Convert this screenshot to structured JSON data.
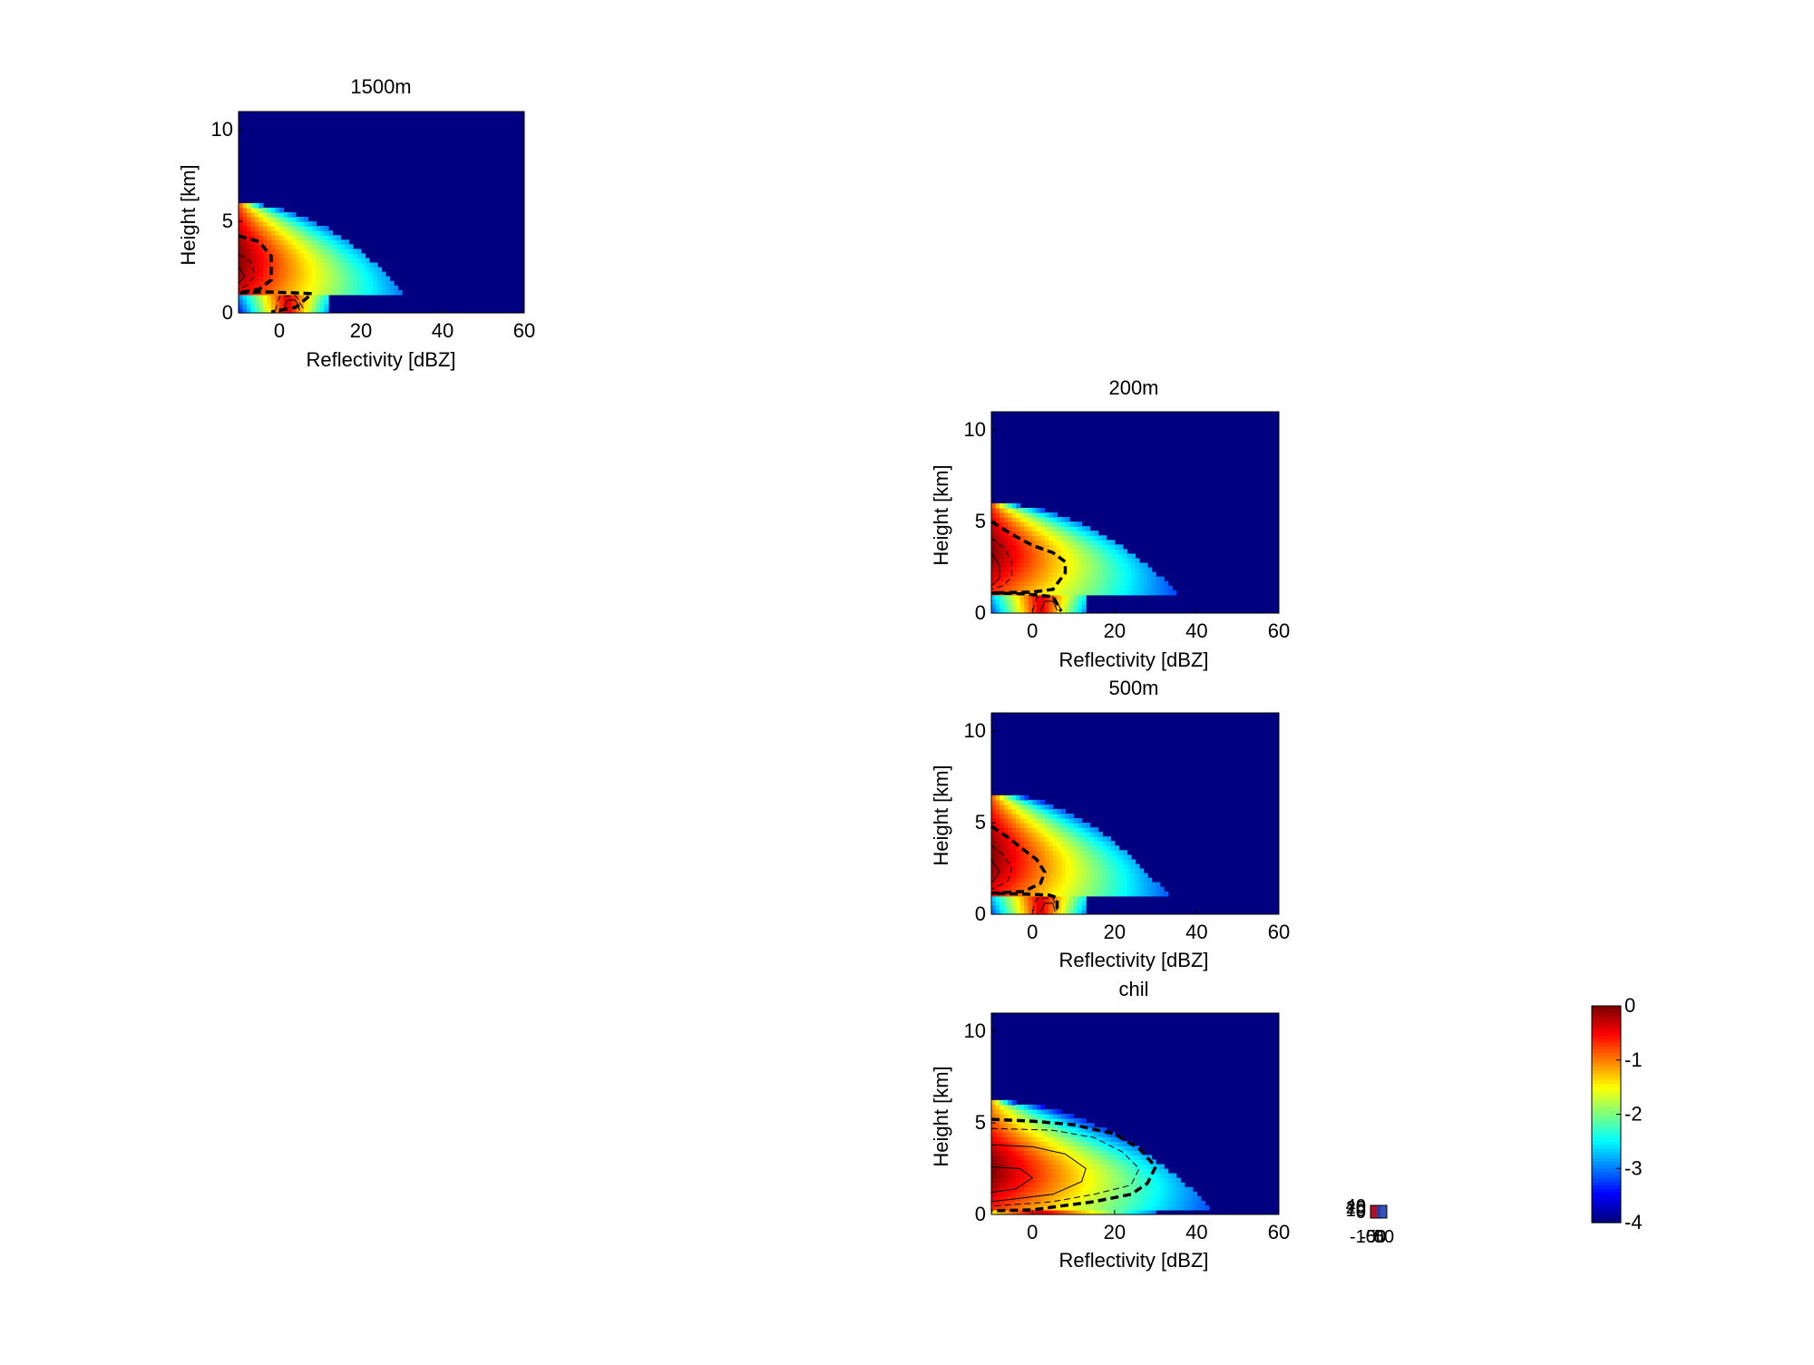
{
  "chart_data": [
    {
      "id": "p1500",
      "type": "heatmap",
      "title": "1500m",
      "xlabel": "Reflectivity [dBZ]",
      "ylabel": "Height [km]",
      "xlim": [
        -10,
        60
      ],
      "ylim": [
        0,
        11
      ],
      "xticks": [
        0,
        20,
        40,
        60
      ],
      "yticks": [
        0,
        5,
        10
      ],
      "grid": false,
      "params": {
        "top": 6.0,
        "meltz": 1.0,
        "extent": 31,
        "nose": 3.0,
        "cone": 12,
        "peak": 3.0
      },
      "contours": [
        {
          "level": -0.7,
          "style": "dashed-thick",
          "points": [
            [
              -10,
              4.2
            ],
            [
              -5,
              3.9
            ],
            [
              -2,
              3.1
            ],
            [
              -2,
              1.8
            ],
            [
              -5,
              1.3
            ],
            [
              -10,
              1.1
            ],
            [
              -4,
              1.15
            ],
            [
              3,
              1.1
            ],
            [
              8,
              1.05
            ],
            [
              4,
              0.3
            ],
            [
              -2,
              0.05
            ]
          ]
        },
        {
          "level": -0.4,
          "style": "dashed-thin",
          "points": [
            [
              -10,
              3.2
            ],
            [
              -7,
              2.8
            ],
            [
              -6,
              2.0
            ],
            [
              -8,
              1.5
            ],
            [
              -10,
              1.3
            ]
          ]
        },
        {
          "level": -0.2,
          "style": "solid-thin",
          "points": [
            [
              -10,
              2.5
            ],
            [
              -8.5,
              2.0
            ],
            [
              -10,
              1.6
            ]
          ]
        },
        {
          "level": -0.5,
          "style": "dashed-thin",
          "points": [
            [
              -1,
              0.1
            ],
            [
              0,
              0.9
            ],
            [
              4,
              0.95
            ],
            [
              6,
              0.2
            ]
          ]
        },
        {
          "level": -0.2,
          "style": "solid-thin",
          "points": [
            [
              1,
              0.15
            ],
            [
              2,
              0.7
            ],
            [
              4,
              0.7
            ],
            [
              5,
              0.15
            ]
          ]
        }
      ]
    },
    {
      "id": "p200",
      "type": "heatmap",
      "title": "200m",
      "xlabel": "Reflectivity [dBZ]",
      "ylabel": "Height [km]",
      "xlim": [
        -10,
        60
      ],
      "ylim": [
        0,
        11
      ],
      "xticks": [
        0,
        20,
        40,
        60
      ],
      "yticks": [
        0,
        5,
        10
      ],
      "grid": false,
      "params": {
        "top": 6.0,
        "meltz": 1.0,
        "extent": 36,
        "nose": 2.6,
        "cone": 13,
        "peak": 3.5
      },
      "contours": [
        {
          "level": -0.7,
          "style": "dashed-thick",
          "points": [
            [
              -10,
              5.0
            ],
            [
              -5,
              4.3
            ],
            [
              0,
              3.7
            ],
            [
              5,
              3.3
            ],
            [
              8,
              2.8
            ],
            [
              8,
              2.2
            ],
            [
              5,
              1.3
            ],
            [
              0,
              1.15
            ],
            [
              -10,
              1.1
            ],
            [
              -2,
              1.05
            ],
            [
              5,
              0.9
            ],
            [
              7,
              0.1
            ]
          ]
        },
        {
          "level": -0.4,
          "style": "dashed-thin",
          "points": [
            [
              -10,
              4.1
            ],
            [
              -7,
              3.6
            ],
            [
              -5,
              2.8
            ],
            [
              -5,
              2.0
            ],
            [
              -7,
              1.5
            ],
            [
              -10,
              1.3
            ]
          ]
        },
        {
          "level": -0.2,
          "style": "solid-thin",
          "points": [
            [
              -10,
              3.3
            ],
            [
              -8,
              2.6
            ],
            [
              -8,
              1.9
            ],
            [
              -10,
              1.5
            ]
          ]
        },
        {
          "level": -0.5,
          "style": "dashed-thin",
          "points": [
            [
              0,
              0.1
            ],
            [
              1,
              0.85
            ],
            [
              5,
              0.9
            ],
            [
              7,
              0.2
            ]
          ]
        },
        {
          "level": -0.2,
          "style": "solid-thin",
          "points": [
            [
              2,
              0.15
            ],
            [
              3,
              0.65
            ],
            [
              5,
              0.65
            ],
            [
              6,
              0.15
            ]
          ]
        }
      ]
    },
    {
      "id": "p500",
      "type": "heatmap",
      "title": "500m",
      "xlabel": "Reflectivity [dBZ]",
      "ylabel": "Height [km]",
      "xlim": [
        -10,
        60
      ],
      "ylim": [
        0,
        11
      ],
      "xticks": [
        0,
        20,
        40,
        60
      ],
      "yticks": [
        0,
        5,
        10
      ],
      "grid": false,
      "params": {
        "top": 6.6,
        "meltz": 1.0,
        "extent": 33,
        "nose": 3.0,
        "cone": 13,
        "peak": 3.3
      },
      "contours": [
        {
          "level": -0.7,
          "style": "dashed-thick",
          "points": [
            [
              -10,
              4.8
            ],
            [
              -6,
              4.2
            ],
            [
              -2,
              3.5
            ],
            [
              1,
              3.0
            ],
            [
              3,
              2.3
            ],
            [
              2,
              1.7
            ],
            [
              -2,
              1.25
            ],
            [
              -10,
              1.15
            ],
            [
              -2,
              1.1
            ],
            [
              4,
              1.05
            ],
            [
              6,
              0.9
            ],
            [
              6,
              0.1
            ]
          ]
        },
        {
          "level": -0.4,
          "style": "dashed-thin",
          "points": [
            [
              -10,
              3.8
            ],
            [
              -7,
              3.2
            ],
            [
              -5,
              2.5
            ],
            [
              -6,
              1.8
            ],
            [
              -10,
              1.35
            ]
          ]
        },
        {
          "level": -0.2,
          "style": "solid-thin",
          "points": [
            [
              -10,
              3.0
            ],
            [
              -8,
              2.3
            ],
            [
              -10,
              1.7
            ]
          ]
        },
        {
          "level": -0.5,
          "style": "dashed-thin",
          "points": [
            [
              0,
              0.1
            ],
            [
              1,
              0.85
            ],
            [
              5,
              0.9
            ],
            [
              6,
              0.2
            ]
          ]
        },
        {
          "level": -0.2,
          "style": "solid-thin",
          "points": [
            [
              2,
              0.15
            ],
            [
              3,
              0.6
            ],
            [
              5,
              0.6
            ],
            [
              5.5,
              0.15
            ]
          ]
        }
      ]
    },
    {
      "id": "pchil",
      "type": "heatmap",
      "title": "chil",
      "xlabel": "Reflectivity [dBZ]",
      "ylabel": "Height [km]",
      "xlim": [
        -10,
        60
      ],
      "ylim": [
        0,
        11
      ],
      "xticks": [
        0,
        20,
        40,
        60
      ],
      "yticks": [
        0,
        5,
        10
      ],
      "grid": false,
      "params": {
        "top": 6.2,
        "meltz": 0.25,
        "extent": 44,
        "nose": 2.5,
        "cone": 30,
        "peak": 2.5
      },
      "contours": [
        {
          "level": -0.7,
          "style": "dashed-thick",
          "points": [
            [
              -10,
              5.2
            ],
            [
              0,
              5.1
            ],
            [
              10,
              4.9
            ],
            [
              20,
              4.4
            ],
            [
              26,
              3.6
            ],
            [
              30,
              2.6
            ],
            [
              28,
              1.7
            ],
            [
              24,
              1.1
            ],
            [
              15,
              0.7
            ],
            [
              5,
              0.4
            ],
            [
              0,
              0.25
            ],
            [
              -10,
              0.2
            ]
          ]
        },
        {
          "level": -0.4,
          "style": "dashed-thin",
          "points": [
            [
              -10,
              4.7
            ],
            [
              5,
              4.6
            ],
            [
              15,
              4.2
            ],
            [
              22,
              3.4
            ],
            [
              26,
              2.5
            ],
            [
              24,
              1.6
            ],
            [
              15,
              1.1
            ],
            [
              5,
              0.7
            ],
            [
              -10,
              0.45
            ]
          ]
        },
        {
          "level": -0.2,
          "style": "solid-thin",
          "points": [
            [
              -10,
              3.8
            ],
            [
              0,
              3.7
            ],
            [
              8,
              3.3
            ],
            [
              13,
              2.5
            ],
            [
              12,
              1.8
            ],
            [
              5,
              1.1
            ],
            [
              -10,
              0.7
            ]
          ]
        },
        {
          "level": -0.2,
          "style": "solid-thin",
          "points": [
            [
              -10,
              2.6
            ],
            [
              -3,
              2.5
            ],
            [
              0,
              2.0
            ],
            [
              -4,
              1.4
            ],
            [
              -10,
              1.2
            ]
          ]
        }
      ]
    }
  ],
  "colorbar": {
    "colormap": "jet",
    "min": -4,
    "max": 0,
    "ticks": [
      "0",
      "-1",
      "-2",
      "-3",
      "-4"
    ]
  },
  "mini_inset": {
    "y_tick_labels": [
      "40",
      "20",
      "10",
      "0"
    ],
    "x_tick_labels": [
      "-100",
      "-50",
      "0",
      "50"
    ]
  }
}
